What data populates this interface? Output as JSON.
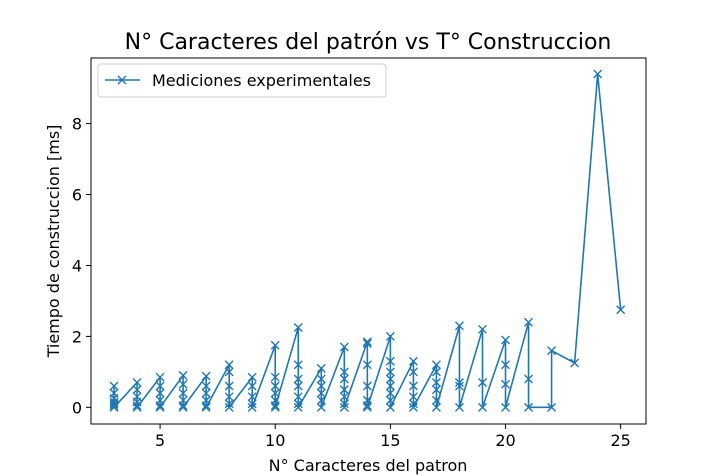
{
  "chart_data": {
    "type": "line",
    "title": "N° Caracteres del patrón vs T° Construccion",
    "xlabel": "N° Caracteres del patron",
    "ylabel": "Tiempo de construccion [ms]",
    "xlim": [
      2.0,
      26.1
    ],
    "ylim": [
      -0.47,
      9.85
    ],
    "xticks": [
      5,
      10,
      15,
      20,
      25
    ],
    "yticks": [
      0,
      2,
      4,
      6,
      8
    ],
    "grid": false,
    "legend_position": "top-left",
    "marker": "x",
    "series": [
      {
        "name": "Mediciones experimentales",
        "color": "#1f77b4",
        "points": [
          [
            3,
            0.6
          ],
          [
            3,
            0.4
          ],
          [
            3,
            0.25
          ],
          [
            3,
            0.15
          ],
          [
            3,
            0.1
          ],
          [
            3,
            0.05
          ],
          [
            3,
            0.0
          ],
          [
            4,
            0.7
          ],
          [
            4,
            0.5
          ],
          [
            4,
            0.3
          ],
          [
            4,
            0.15
          ],
          [
            4,
            0.05
          ],
          [
            4,
            0.0
          ],
          [
            5,
            0.85
          ],
          [
            5,
            0.6
          ],
          [
            5,
            0.4
          ],
          [
            5,
            0.2
          ],
          [
            5,
            0.05
          ],
          [
            5,
            0.0
          ],
          [
            6,
            0.9
          ],
          [
            6,
            0.65
          ],
          [
            6,
            0.4
          ],
          [
            6,
            0.2
          ],
          [
            6,
            0.05
          ],
          [
            6,
            0.0
          ],
          [
            7,
            0.88
          ],
          [
            7,
            0.6
          ],
          [
            7,
            0.4
          ],
          [
            7,
            0.2
          ],
          [
            7,
            0.05
          ],
          [
            7,
            0.0
          ],
          [
            8,
            1.2
          ],
          [
            8,
            1.0
          ],
          [
            8,
            0.6
          ],
          [
            8,
            0.3
          ],
          [
            8,
            0.1
          ],
          [
            8,
            0.0
          ],
          [
            9,
            0.85
          ],
          [
            9,
            0.6
          ],
          [
            9,
            0.3
          ],
          [
            9,
            0.1
          ],
          [
            9,
            0.0
          ],
          [
            10,
            1.75
          ],
          [
            10,
            0.85
          ],
          [
            10,
            0.6
          ],
          [
            10,
            0.4
          ],
          [
            10,
            0.2
          ],
          [
            10,
            0.05
          ],
          [
            10,
            0.0
          ],
          [
            11,
            2.25
          ],
          [
            11,
            1.2
          ],
          [
            11,
            0.8
          ],
          [
            11,
            0.6
          ],
          [
            11,
            0.3
          ],
          [
            11,
            0.1
          ],
          [
            11,
            0.0
          ],
          [
            12,
            1.1
          ],
          [
            12,
            0.8
          ],
          [
            12,
            0.6
          ],
          [
            12,
            0.4
          ],
          [
            12,
            0.2
          ],
          [
            12,
            0.0
          ],
          [
            13,
            1.7
          ],
          [
            13,
            1.0
          ],
          [
            13,
            0.8
          ],
          [
            13,
            0.5
          ],
          [
            13,
            0.3
          ],
          [
            13,
            0.1
          ],
          [
            13,
            0.0
          ],
          [
            14,
            1.85
          ],
          [
            14,
            1.8
          ],
          [
            14,
            1.2
          ],
          [
            14,
            0.6
          ],
          [
            14,
            0.2
          ],
          [
            14,
            0.05
          ],
          [
            14,
            0.0
          ],
          [
            15,
            2.0
          ],
          [
            15,
            1.3
          ],
          [
            15,
            1.0
          ],
          [
            15,
            0.8
          ],
          [
            15,
            0.6
          ],
          [
            15,
            0.4
          ],
          [
            15,
            0.2
          ],
          [
            15,
            0.0
          ],
          [
            16,
            1.3
          ],
          [
            16,
            1.0
          ],
          [
            16,
            0.6
          ],
          [
            16,
            0.3
          ],
          [
            16,
            0.1
          ],
          [
            16,
            0.0
          ],
          [
            17,
            1.2
          ],
          [
            17,
            1.0
          ],
          [
            17,
            0.7
          ],
          [
            17,
            0.5
          ],
          [
            17,
            0.2
          ],
          [
            17,
            0.0
          ],
          [
            18,
            2.3
          ],
          [
            18,
            0.7
          ],
          [
            18,
            0.6
          ],
          [
            18,
            0.0
          ],
          [
            19,
            2.2
          ],
          [
            19,
            0.7
          ],
          [
            19,
            0.0
          ],
          [
            20,
            1.9
          ],
          [
            20,
            1.2
          ],
          [
            20,
            0.65
          ],
          [
            20,
            0.0
          ],
          [
            21,
            2.4
          ],
          [
            21,
            0.8
          ],
          [
            21,
            0.0
          ],
          [
            22,
            0.0
          ],
          [
            22,
            1.6
          ],
          [
            23,
            1.25
          ],
          [
            24,
            9.4
          ],
          [
            25,
            2.75
          ]
        ]
      }
    ]
  }
}
